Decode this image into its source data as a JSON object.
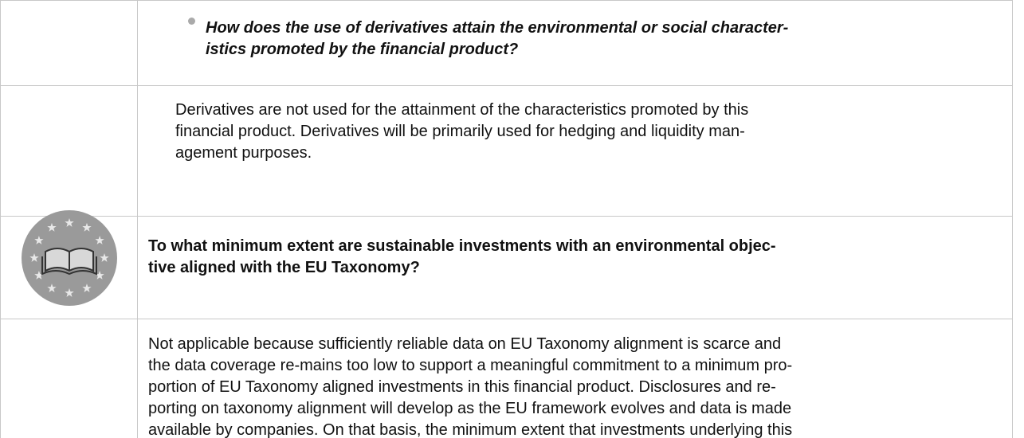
{
  "rows": [
    {
      "style": "q",
      "left": 258,
      "top": 22,
      "lines": [
        "How does the use of derivatives attain the environmental or social character-",
        "istics promoted by the financial product?"
      ]
    },
    {
      "style": "",
      "left": 220,
      "top": 125,
      "lines": [
        "Derivatives are not used for the attainment of the characteristics promoted by this",
        "financial product. Derivatives will be primarily used for hedging and liquidity man-",
        "agement purposes."
      ]
    },
    {
      "style": "b",
      "left": 186,
      "top": 296,
      "lines": [
        "To what minimum extent are sustainable investments with an environmental objec-",
        "tive aligned with the EU Taxonomy?"
      ]
    },
    {
      "style": "",
      "left": 186,
      "top": 419,
      "lines": [
        "Not applicable because sufficiently reliable data on EU Taxonomy alignment is scarce and",
        "the data coverage re-mains too low to support a meaningful commitment to a minimum pro-",
        "portion of EU Taxonomy aligned investments in this financial product. Disclosures and re-",
        "porting on taxonomy alignment will develop as the EU framework evolves and data is made",
        "available by companies. On that basis, the minimum extent that investments underlying this"
      ]
    }
  ]
}
